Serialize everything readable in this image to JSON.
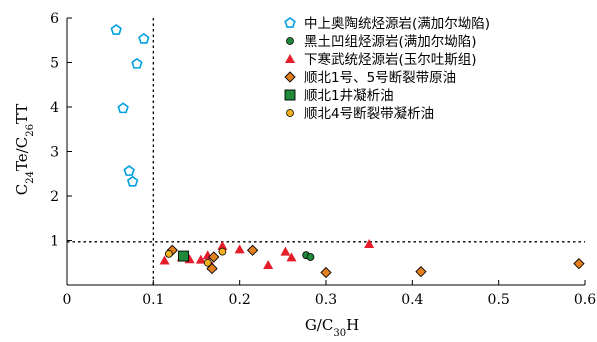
{
  "chart_data": {
    "type": "scatter",
    "xlabel": "G/C30H",
    "ylabel": "C24Te/C26TT",
    "xlim": [
      0,
      0.6
    ],
    "ylim": [
      0,
      6
    ],
    "x_ticks": [
      "0",
      "0.1",
      "0.2",
      "0.3",
      "0.4",
      "0.5",
      "0.6"
    ],
    "y_ticks": [
      "1",
      "2",
      "3",
      "4",
      "5",
      "6"
    ],
    "reference_lines": [
      {
        "axis": "x",
        "value": 0.1,
        "style": "dotted"
      },
      {
        "axis": "y",
        "value": 0.97,
        "style": "dotted"
      }
    ],
    "legend_position": "top-right",
    "series": [
      {
        "name": "中上奥陶统烃源岩(满加尔坳陷)",
        "marker": "pentagon-open",
        "color": "#00a0e0",
        "points": [
          [
            0.057,
            5.73
          ],
          [
            0.089,
            5.53
          ],
          [
            0.081,
            4.97
          ],
          [
            0.065,
            3.97
          ],
          [
            0.072,
            2.56
          ],
          [
            0.076,
            2.32
          ]
        ]
      },
      {
        "name": "黑土凹组烃源岩(满加尔坳陷)",
        "marker": "circle",
        "color": "#1f8a3a",
        "points": [
          [
            0.277,
            0.67
          ],
          [
            0.282,
            0.63
          ]
        ]
      },
      {
        "name": "下寒武统烃源岩(玉尔吐斯组)",
        "marker": "triangle",
        "color": "#e51d2a",
        "points": [
          [
            0.113,
            0.55
          ],
          [
            0.133,
            0.62
          ],
          [
            0.142,
            0.58
          ],
          [
            0.155,
            0.57
          ],
          [
            0.163,
            0.67
          ],
          [
            0.168,
            0.42
          ],
          [
            0.18,
            0.88
          ],
          [
            0.2,
            0.8
          ],
          [
            0.233,
            0.45
          ],
          [
            0.253,
            0.75
          ],
          [
            0.26,
            0.62
          ],
          [
            0.35,
            0.92
          ]
        ]
      },
      {
        "name": "顺北1号、5号断裂带原油",
        "marker": "diamond",
        "color": "#e27f1e",
        "points": [
          [
            0.122,
            0.78
          ],
          [
            0.168,
            0.37
          ],
          [
            0.17,
            0.63
          ],
          [
            0.215,
            0.78
          ],
          [
            0.3,
            0.28
          ],
          [
            0.41,
            0.3
          ],
          [
            0.593,
            0.48
          ]
        ]
      },
      {
        "name": "顺北1井凝析油",
        "marker": "square",
        "color": "#1f8a3a",
        "points": [
          [
            0.135,
            0.65
          ]
        ]
      },
      {
        "name": "顺北4号断裂带凝析油",
        "marker": "circle",
        "color": "#f2b01e",
        "points": [
          [
            0.118,
            0.7
          ],
          [
            0.163,
            0.5
          ],
          [
            0.18,
            0.75
          ]
        ]
      }
    ]
  }
}
